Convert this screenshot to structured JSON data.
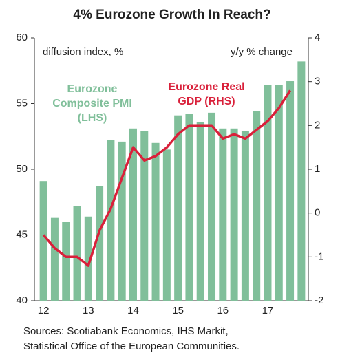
{
  "chart_data": {
    "type": "bar_line",
    "title": "4% Eurozone Growth In Reach?",
    "categories": [
      "12",
      null,
      null,
      null,
      "13",
      null,
      null,
      null,
      "14",
      null,
      null,
      null,
      "15",
      null,
      null,
      null,
      "16",
      null,
      null,
      null,
      "17",
      null,
      null,
      null
    ],
    "series": [
      {
        "name": "Eurozone Composite PMI (LHS)",
        "type": "bar",
        "color": "#80bf9a",
        "axis": "y",
        "values": [
          49.1,
          46.3,
          46.0,
          47.2,
          46.4,
          48.7,
          52.2,
          52.1,
          53.1,
          52.9,
          52.0,
          51.5,
          54.1,
          54.2,
          53.6,
          54.3,
          53.1,
          53.1,
          52.9,
          54.4,
          56.4,
          56.4,
          56.7,
          58.2
        ]
      },
      {
        "name": "Eurozone Real GDP (RHS)",
        "type": "line",
        "color": "#d9203a",
        "axis": "y2",
        "values": [
          -0.5,
          -0.8,
          -1.0,
          -1.0,
          -1.2,
          -0.4,
          0.1,
          0.8,
          1.5,
          1.2,
          1.3,
          1.5,
          1.8,
          2.0,
          2.0,
          2.0,
          1.7,
          1.8,
          1.7,
          1.9,
          2.1,
          2.4,
          2.8,
          null
        ]
      }
    ],
    "ylim": [
      40,
      60
    ],
    "yticks": [
      40,
      45,
      50,
      55,
      60
    ],
    "y2lim": [
      -2,
      4
    ],
    "y2ticks": [
      -2,
      -1,
      0,
      1,
      2,
      3,
      4
    ],
    "annotations": {
      "left_unit": "diffusion index, %",
      "right_unit": "y/y % change",
      "pmi_label": [
        "Eurozone",
        "Composite PMI",
        "(LHS)"
      ],
      "gdp_label": [
        "Eurozone Real",
        "GDP (RHS)"
      ]
    },
    "source": [
      "Sources: Scotiabank Economics, IHS Markit,",
      "Statistical Office of the European Communities."
    ]
  }
}
